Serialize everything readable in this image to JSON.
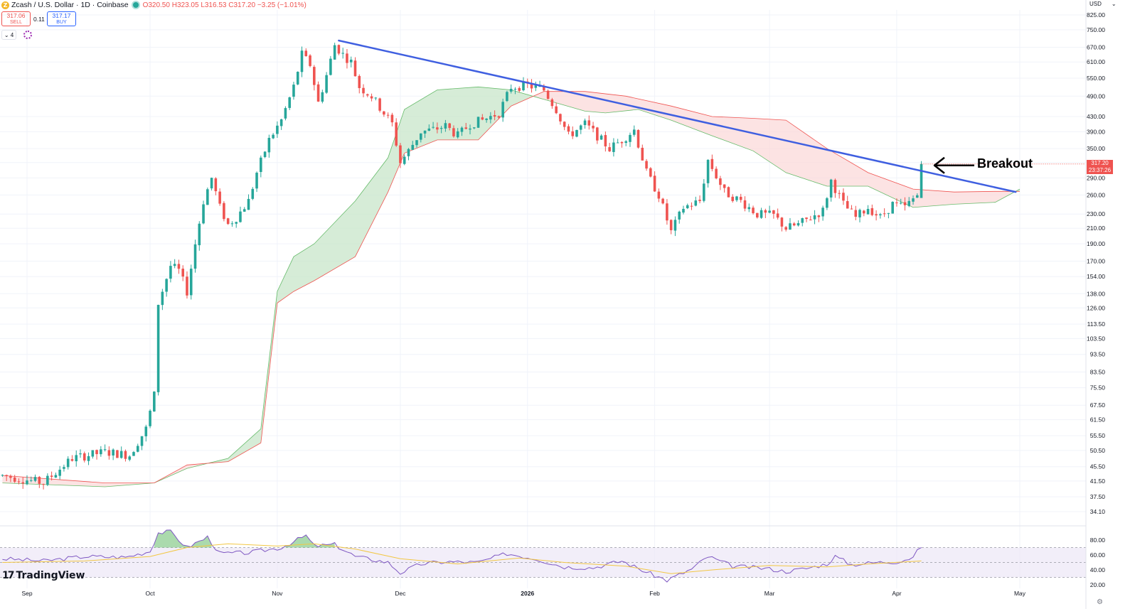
{
  "header": {
    "coin_glyph": "Z",
    "symbol": "Zcash / U.S. Dollar · 1D · Coinbase",
    "ohlc_o": "O320.50",
    "ohlc_h": "H323.05",
    "ohlc_l": "L316.53",
    "ohlc_c": "C317.20",
    "ohlc_chg": "−3.25 (−1.01%)"
  },
  "trade": {
    "sell_price": "317.06",
    "sell_label": "SELL",
    "spread": "0.11",
    "buy_price": "317.17",
    "buy_label": "BUY"
  },
  "toggle": {
    "label": "⌄ 4"
  },
  "currency": {
    "label": "USD",
    "chevron": "⌄"
  },
  "brand": {
    "mark": "17",
    "name": "TradingView"
  },
  "settings_icon": "⚙",
  "last_price": {
    "value": "317.20",
    "countdown": "23:37:26"
  },
  "annotation": {
    "text": "Breakout",
    "arrow": "left-arrow"
  },
  "colors": {
    "up": "#26a69a",
    "down": "#ef5350",
    "trendline": "#3f5fe0",
    "cloud_bull": "#c8e6c9",
    "cloud_bear": "#fbd9d9",
    "rsi_line": "#7e57c2",
    "rsi_ma": "#f2c744",
    "rsi_band": "#ede7f6"
  },
  "chart_data": [
    {
      "type": "candlestick",
      "title": "",
      "scale": "log",
      "ylim": [
        31.5,
        860
      ],
      "ylabel": "",
      "xlabel": "",
      "y_ticks": [
        "825.00",
        "750.00",
        "670.00",
        "610.00",
        "550.00",
        "490.00",
        "430.00",
        "390.00",
        "350.00",
        "320.00",
        "290.00",
        "260.00",
        "230.00",
        "210.00",
        "190.00",
        "170.00",
        "154.00",
        "138.00",
        "126.00",
        "113.50",
        "103.50",
        "93.50",
        "83.50",
        "75.50",
        "67.50",
        "61.50",
        "55.50",
        "50.50",
        "45.50",
        "41.50",
        "37.50",
        "34.10"
      ],
      "x_ticks": [
        {
          "label": "Sep",
          "date": "2025-09-01"
        },
        {
          "label": "Oct",
          "date": "2025-10-01"
        },
        {
          "label": "Nov",
          "date": "2025-11-01"
        },
        {
          "label": "Dec",
          "date": "2025-12-01"
        },
        {
          "label": "2026",
          "date": "2026-01-01"
        },
        {
          "label": "Feb",
          "date": "2026-02-01"
        },
        {
          "label": "Mar",
          "date": "2026-03-01"
        },
        {
          "label": "Apr",
          "date": "2026-04-01"
        },
        {
          "label": "May",
          "date": "2026-05-01"
        }
      ],
      "price_path": [
        [
          "2025-08-26",
          43
        ],
        [
          "2025-09-05",
          41
        ],
        [
          "2025-09-12",
          48
        ],
        [
          "2025-09-20",
          50
        ],
        [
          "2025-09-26",
          49
        ],
        [
          "2025-09-30",
          58
        ],
        [
          "2025-10-02",
          72
        ],
        [
          "2025-10-03",
          130
        ],
        [
          "2025-10-06",
          165
        ],
        [
          "2025-10-08",
          160
        ],
        [
          "2025-10-10",
          140
        ],
        [
          "2025-10-12",
          190
        ],
        [
          "2025-10-14",
          250
        ],
        [
          "2025-10-16",
          290
        ],
        [
          "2025-10-18",
          240
        ],
        [
          "2025-10-20",
          215
        ],
        [
          "2025-10-22",
          225
        ],
        [
          "2025-10-25",
          250
        ],
        [
          "2025-10-27",
          300
        ],
        [
          "2025-10-30",
          370
        ],
        [
          "2025-11-02",
          420
        ],
        [
          "2025-11-05",
          520
        ],
        [
          "2025-11-07",
          640
        ],
        [
          "2025-11-09",
          600
        ],
        [
          "2025-11-11",
          470
        ],
        [
          "2025-11-13",
          560
        ],
        [
          "2025-11-15",
          680
        ],
        [
          "2025-11-17",
          640
        ],
        [
          "2025-11-19",
          610
        ],
        [
          "2025-11-21",
          520
        ],
        [
          "2025-11-24",
          490
        ],
        [
          "2025-11-27",
          440
        ],
        [
          "2025-11-29",
          410
        ],
        [
          "2025-12-01",
          320
        ],
        [
          "2025-12-03",
          345
        ],
        [
          "2025-12-06",
          390
        ],
        [
          "2025-12-09",
          395
        ],
        [
          "2025-12-12",
          405
        ],
        [
          "2025-12-15",
          380
        ],
        [
          "2025-12-18",
          410
        ],
        [
          "2025-12-21",
          420
        ],
        [
          "2025-12-25",
          440
        ],
        [
          "2025-12-28",
          520
        ],
        [
          "2026-01-01",
          525
        ],
        [
          "2026-01-05",
          510
        ],
        [
          "2026-01-08",
          450
        ],
        [
          "2026-01-11",
          380
        ],
        [
          "2026-01-15",
          410
        ],
        [
          "2026-01-18",
          380
        ],
        [
          "2026-01-21",
          350
        ],
        [
          "2026-01-24",
          370
        ],
        [
          "2026-01-27",
          395
        ],
        [
          "2026-01-30",
          300
        ],
        [
          "2026-02-02",
          260
        ],
        [
          "2026-02-05",
          205
        ],
        [
          "2026-02-08",
          240
        ],
        [
          "2026-02-12",
          250
        ],
        [
          "2026-02-14",
          325
        ],
        [
          "2026-02-18",
          265
        ],
        [
          "2026-02-22",
          250
        ],
        [
          "2026-02-26",
          230
        ],
        [
          "2026-03-02",
          228
        ],
        [
          "2026-03-05",
          210
        ],
        [
          "2026-03-08",
          215
        ],
        [
          "2026-03-11",
          225
        ],
        [
          "2026-03-14",
          235
        ],
        [
          "2026-03-16",
          285
        ],
        [
          "2026-03-19",
          245
        ],
        [
          "2026-03-22",
          225
        ],
        [
          "2026-03-25",
          240
        ],
        [
          "2026-03-28",
          225
        ],
        [
          "2026-03-31",
          245
        ],
        [
          "2026-04-03",
          240
        ],
        [
          "2026-04-06",
          260
        ],
        [
          "2026-04-07",
          317.2
        ]
      ],
      "last": {
        "open": 320.5,
        "high": 323.05,
        "low": 316.53,
        "close": 317.2
      },
      "ichimoku_span_a": [
        [
          "2025-08-26",
          41
        ],
        [
          "2025-09-20",
          40
        ],
        [
          "2025-10-02",
          41
        ],
        [
          "2025-10-10",
          45
        ],
        [
          "2025-10-20",
          48
        ],
        [
          "2025-10-28",
          58
        ],
        [
          "2025-11-01",
          140
        ],
        [
          "2025-11-05",
          175
        ],
        [
          "2025-11-10",
          190
        ],
        [
          "2025-11-20",
          250
        ],
        [
          "2025-11-28",
          330
        ],
        [
          "2025-12-02",
          450
        ],
        [
          "2025-12-10",
          510
        ],
        [
          "2025-12-20",
          520
        ],
        [
          "2025-12-28",
          510
        ],
        [
          "2026-01-05",
          480
        ],
        [
          "2026-01-15",
          445
        ],
        [
          "2026-01-20",
          440
        ],
        [
          "2026-01-28",
          450
        ],
        [
          "2026-02-05",
          420
        ],
        [
          "2026-02-15",
          380
        ],
        [
          "2026-02-25",
          345
        ],
        [
          "2026-03-05",
          300
        ],
        [
          "2026-03-15",
          275
        ],
        [
          "2026-03-25",
          275
        ],
        [
          "2026-04-05",
          240
        ],
        [
          "2026-04-15",
          245
        ],
        [
          "2026-04-25",
          248
        ],
        [
          "2026-05-01",
          270
        ]
      ],
      "ichimoku_span_b": [
        [
          "2025-08-26",
          43
        ],
        [
          "2025-09-20",
          41
        ],
        [
          "2025-10-02",
          41
        ],
        [
          "2025-10-10",
          46
        ],
        [
          "2025-10-20",
          47
        ],
        [
          "2025-10-28",
          53
        ],
        [
          "2025-11-01",
          130
        ],
        [
          "2025-11-05",
          140
        ],
        [
          "2025-11-10",
          150
        ],
        [
          "2025-11-20",
          175
        ],
        [
          "2025-11-28",
          265
        ],
        [
          "2025-12-02",
          340
        ],
        [
          "2025-12-10",
          370
        ],
        [
          "2025-12-20",
          370
        ],
        [
          "2025-12-28",
          460
        ],
        [
          "2026-01-05",
          505
        ],
        [
          "2026-01-15",
          505
        ],
        [
          "2026-01-25",
          490
        ],
        [
          "2026-02-05",
          460
        ],
        [
          "2026-02-15",
          430
        ],
        [
          "2026-02-25",
          425
        ],
        [
          "2026-03-05",
          420
        ],
        [
          "2026-03-15",
          350
        ],
        [
          "2026-03-25",
          300
        ],
        [
          "2026-04-05",
          270
        ],
        [
          "2026-04-15",
          265
        ],
        [
          "2026-04-25",
          266
        ],
        [
          "2026-05-01",
          266
        ]
      ],
      "trendline": [
        [
          "2025-11-16",
          700
        ],
        [
          "2026-04-30",
          265
        ]
      ]
    },
    {
      "type": "line",
      "title": "",
      "ylim": [
        15,
        100
      ],
      "y_ticks": [
        "80.00",
        "60.00",
        "40.00",
        "20.00"
      ],
      "bands": {
        "upper": 70,
        "middle": 50,
        "lower": 30
      },
      "series": [
        {
          "values": [
            [
              "2025-08-26",
              55
            ],
            [
              "2025-09-05",
              52
            ],
            [
              "2025-09-15",
              58
            ],
            [
              "2025-09-25",
              57
            ],
            [
              "2025-10-01",
              65
            ],
            [
              "2025-10-03",
              90
            ],
            [
              "2025-10-06",
              91
            ],
            [
              "2025-10-10",
              70
            ],
            [
              "2025-10-15",
              84
            ],
            [
              "2025-10-18",
              62
            ],
            [
              "2025-10-25",
              63
            ],
            [
              "2025-11-02",
              70
            ],
            [
              "2025-11-08",
              86
            ],
            [
              "2025-11-10",
              72
            ],
            [
              "2025-11-15",
              74
            ],
            [
              "2025-11-20",
              58
            ],
            [
              "2025-11-28",
              50
            ],
            [
              "2025-12-01",
              36
            ],
            [
              "2025-12-06",
              48
            ],
            [
              "2025-12-12",
              51
            ],
            [
              "2025-12-20",
              50
            ],
            [
              "2025-12-27",
              62
            ],
            [
              "2026-01-03",
              55
            ],
            [
              "2026-01-10",
              44
            ],
            [
              "2026-01-17",
              43
            ],
            [
              "2026-01-24",
              52
            ],
            [
              "2026-01-30",
              37
            ],
            [
              "2026-02-04",
              26
            ],
            [
              "2026-02-10",
              41
            ],
            [
              "2026-02-14",
              58
            ],
            [
              "2026-02-20",
              45
            ],
            [
              "2026-02-28",
              42
            ],
            [
              "2026-03-05",
              38
            ],
            [
              "2026-03-10",
              42
            ],
            [
              "2026-03-15",
              48
            ],
            [
              "2026-03-17",
              58
            ],
            [
              "2026-03-21",
              47
            ],
            [
              "2026-03-27",
              50
            ],
            [
              "2026-04-01",
              51
            ],
            [
              "2026-04-05",
              57
            ],
            [
              "2026-04-07",
              72
            ]
          ]
        },
        {
          "values": [
            [
              "2025-08-26",
              50
            ],
            [
              "2025-09-15",
              52
            ],
            [
              "2025-10-01",
              58
            ],
            [
              "2025-10-10",
              70
            ],
            [
              "2025-10-20",
              75
            ],
            [
              "2025-11-01",
              72
            ],
            [
              "2025-11-10",
              75
            ],
            [
              "2025-11-20",
              68
            ],
            [
              "2025-12-01",
              55
            ],
            [
              "2025-12-15",
              48
            ],
            [
              "2025-12-30",
              56
            ],
            [
              "2026-01-10",
              50
            ],
            [
              "2026-01-25",
              45
            ],
            [
              "2026-02-05",
              35
            ],
            [
              "2026-02-15",
              40
            ],
            [
              "2026-03-01",
              46
            ],
            [
              "2026-03-15",
              44
            ],
            [
              "2026-03-25",
              48
            ],
            [
              "2026-04-07",
              52
            ]
          ]
        }
      ]
    }
  ]
}
